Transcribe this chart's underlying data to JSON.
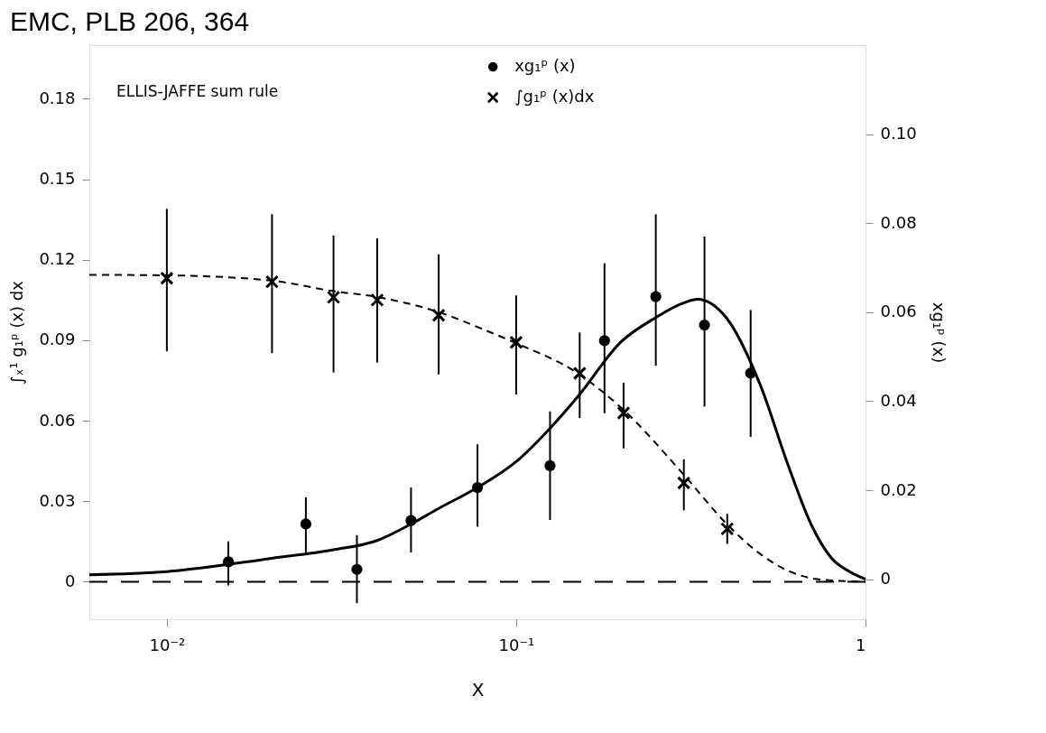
{
  "chart_data": {
    "type": "scatter",
    "title": "EMC, PLB 206, 364",
    "xlabel": "X",
    "ylabel": "∫ₓ¹ g₁ᵖ (x) dx",
    "y2label": "xg₁ᵖ (x)",
    "log": "x",
    "grid": false,
    "legend": "top right",
    "xlim": [
      0.006,
      1
    ],
    "xticks": [
      {
        "value": 0.01,
        "label": "10⁻²"
      },
      {
        "value": 0.1,
        "label": "10⁻¹"
      },
      1
    ],
    "ylim": [
      -0.014,
      0.2
    ],
    "yticks": [
      0,
      0.03,
      0.06,
      0.09,
      0.12,
      0.15,
      0.18
    ],
    "y2lim": [
      -0.009,
      0.12
    ],
    "y2ticks": [
      0,
      0.02,
      0.04,
      0.06,
      0.08,
      {
        "value": 0.1,
        "label": "0.10"
      }
    ],
    "series": [
      {
        "name": "xg₁ᵖ (x)",
        "axis": "y2",
        "marker": "circle",
        "color": "#000000",
        "x": [
          0.015,
          0.025,
          0.035,
          0.05,
          0.0775,
          0.125,
          0.179,
          0.251,
          0.346,
          0.469
        ],
        "values": [
          0.0039,
          0.0124,
          0.0022,
          0.0132,
          0.0206,
          0.0255,
          0.0536,
          0.0635,
          0.0571,
          0.0463
        ],
        "errors": [
          [
            -0.0014,
            0.0085
          ],
          [
            0.0054,
            0.0184
          ],
          [
            -0.0054,
            0.0099
          ],
          [
            0.006,
            0.0206
          ],
          [
            0.0118,
            0.0303
          ],
          [
            0.0133,
            0.0377
          ],
          [
            0.0373,
            0.071
          ],
          [
            0.048,
            0.082
          ],
          [
            0.0388,
            0.077
          ],
          [
            0.032,
            0.0605
          ]
        ]
      },
      {
        "name": "∫g₁ᵖ (x)dx",
        "axis": "y",
        "marker": "cross",
        "color": "#000000",
        "x": [
          0.01,
          0.02,
          0.03,
          0.04,
          0.06,
          0.1,
          0.152,
          0.203,
          0.302,
          0.402
        ],
        "values": [
          0.1131,
          0.1118,
          0.106,
          0.105,
          0.0993,
          0.0892,
          0.0777,
          0.0629,
          0.0368,
          0.0197
        ],
        "errors": [
          [
            0.0859,
            0.139
          ],
          [
            0.0852,
            0.137
          ],
          [
            0.078,
            0.129
          ],
          [
            0.0817,
            0.128
          ],
          [
            0.0773,
            0.122
          ],
          [
            0.0698,
            0.1067
          ],
          [
            0.061,
            0.0929
          ],
          [
            0.0497,
            0.0742
          ],
          [
            0.0266,
            0.0456
          ],
          [
            0.0141,
            0.0253
          ]
        ]
      },
      {
        "type": "line",
        "axis": "y2",
        "marker": "none",
        "line_style": "solid",
        "color": "#000000",
        "x": [
          0.006,
          0.01,
          0.02,
          0.03,
          0.04,
          0.05,
          0.06,
          0.0775,
          0.1,
          0.125,
          0.15,
          0.2,
          0.25,
          0.3,
          0.33,
          0.4,
          0.5,
          0.6,
          0.7,
          0.8,
          0.9,
          1
        ],
        "values": [
          0.001,
          0.0017,
          0.0047,
          0.0066,
          0.0087,
          0.0124,
          0.0159,
          0.0206,
          0.0264,
          0.0339,
          0.041,
          0.0534,
          0.0587,
          0.062,
          0.0629,
          0.0587,
          0.0436,
          0.0257,
          0.0122,
          0.0047,
          0.0017,
          0
        ]
      },
      {
        "type": "line",
        "axis": "y",
        "marker": "none",
        "line_style": "dashed",
        "color": "#000000",
        "x": [
          0.006,
          0.01,
          0.02,
          0.03,
          0.04,
          0.06,
          0.08,
          0.1,
          0.15,
          0.2,
          0.3,
          0.4,
          0.5,
          0.6,
          0.7,
          0.8,
          1
        ],
        "values": [
          0.1144,
          0.1142,
          0.1122,
          0.1083,
          0.1061,
          0.1005,
          0.0942,
          0.0889,
          0.0777,
          0.0648,
          0.0403,
          0.0216,
          0.0103,
          0.0041,
          0.0013,
          0.0005,
          0
        ]
      }
    ],
    "ref_lines": [
      {
        "axis": "y",
        "value": 0,
        "line_style": "dashed",
        "color": "#000000"
      }
    ],
    "annotations": [
      "ELLIS-JAFFE sum rule"
    ]
  }
}
